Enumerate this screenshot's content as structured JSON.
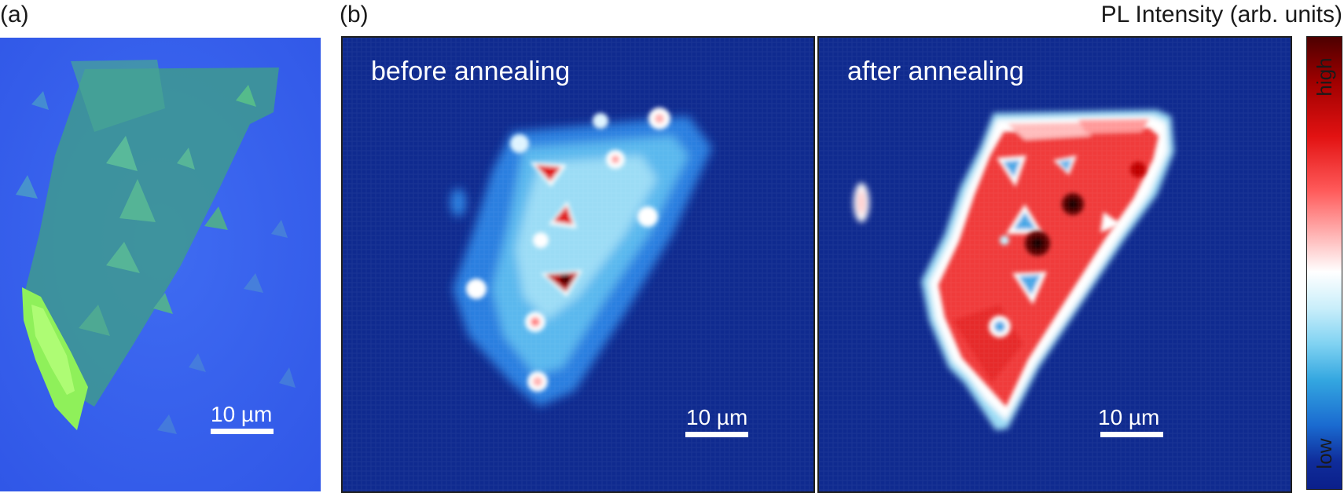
{
  "labels": {
    "panel_a": "(a)",
    "panel_b": "(b)"
  },
  "panel_before": {
    "title": "before annealing",
    "scale_bar_label": "10 µm"
  },
  "panel_after": {
    "title": "after annealing",
    "scale_bar_label": "10 µm"
  },
  "optical_image": {
    "scale_bar_label": "10 µm"
  },
  "colorbar": {
    "title": "PL Intensity (arb. units)",
    "high_label": "high",
    "low_label": "low"
  },
  "colors": {
    "map_background": "#0f2a8f",
    "optical_background": "#3a5ef0",
    "high": "#e21212",
    "low": "#0b1f8a"
  }
}
